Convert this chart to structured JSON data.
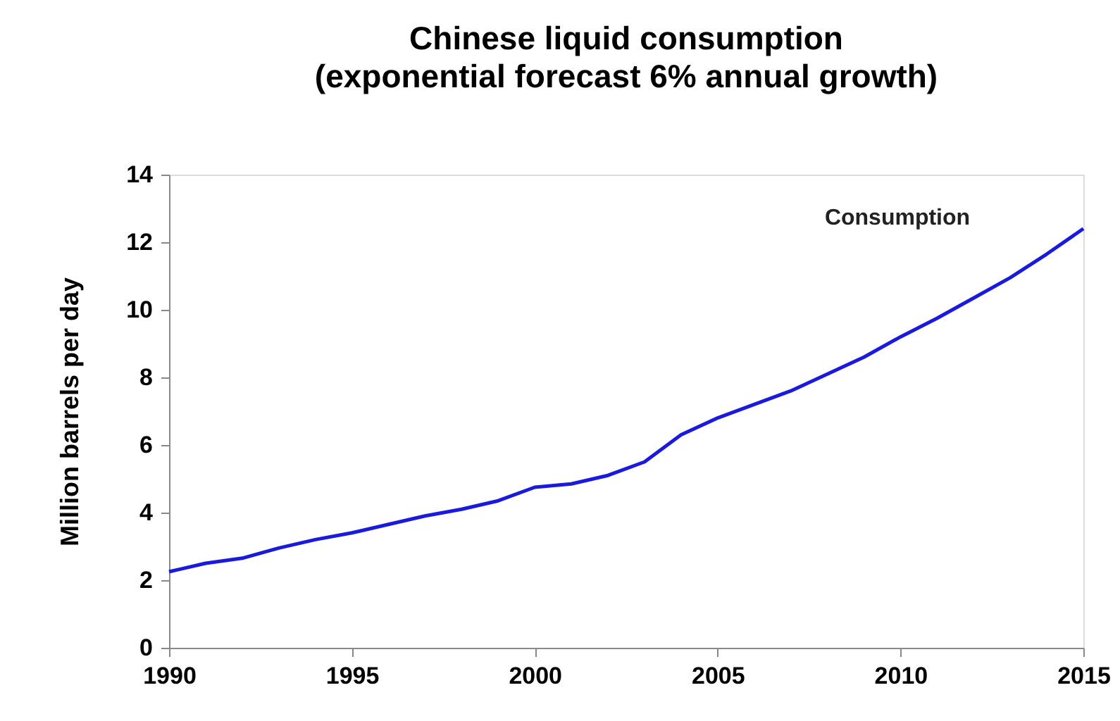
{
  "chart_data": {
    "type": "line",
    "title": "Chinese liquid consumption",
    "subtitle": "(exponential forecast 6% annual growth)",
    "ylabel": "Million barrels per day",
    "x": [
      1990,
      1991,
      1992,
      1993,
      1994,
      1995,
      1996,
      1997,
      1998,
      1999,
      2000,
      2001,
      2002,
      2003,
      2004,
      2005,
      2006,
      2007,
      2008,
      2009,
      2010,
      2011,
      2012,
      2013,
      2014,
      2015
    ],
    "series": [
      {
        "name": "Consumption",
        "color": "#1a1adc",
        "values": [
          2.25,
          2.5,
          2.65,
          2.95,
          3.2,
          3.4,
          3.65,
          3.9,
          4.1,
          4.35,
          4.75,
          4.85,
          5.1,
          5.5,
          6.3,
          6.8,
          7.2,
          7.6,
          8.1,
          8.6,
          9.2,
          9.75,
          10.35,
          10.95,
          11.65,
          12.4
        ]
      }
    ],
    "xlim": [
      1990,
      2015
    ],
    "xticks": [
      1990,
      1995,
      2000,
      2005,
      2010,
      2015
    ],
    "ylim": [
      0,
      14
    ],
    "yticks": [
      0,
      2,
      4,
      6,
      8,
      10,
      12,
      14
    ],
    "grid": false,
    "marker": "none",
    "line_style": "solid"
  }
}
